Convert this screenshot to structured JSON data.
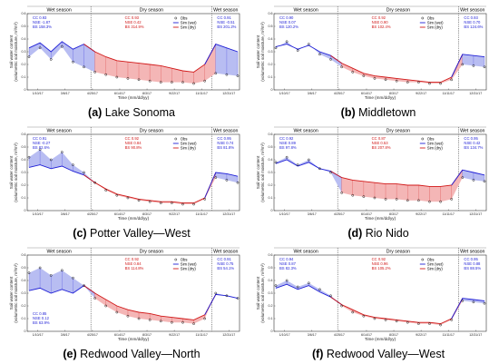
{
  "chart_data": [
    {
      "type": "line",
      "caption_letter": "(a)",
      "caption_name": "Lake Sonoma",
      "ylabel": "Soil water content\n(volumetric soil moisture, m³/m³)",
      "xlabel": "Time (mm/dd/yy)",
      "ylim": [
        0,
        0.6
      ],
      "yticks": [
        "0",
        "0.1",
        "0.2",
        "0.3",
        "0.4",
        "0.5",
        "0.6"
      ],
      "xtick_labels": [
        "1/10/17",
        "3/6/17",
        "4/25/17",
        "6/14/17",
        "8/3/17",
        "9/22/17",
        "11/11/17",
        "12/31/17"
      ],
      "seasons": [
        "Wet season",
        "Dry season",
        "Wet season"
      ],
      "legend": [
        "Obs",
        "Sim (wet)",
        "Sim (dry)"
      ],
      "stats_wet": {
        "CC": "CC   0.93",
        "NSE": "NSE  -1.87",
        "BS": "BS   158.3%"
      },
      "stats_dry": {
        "CC": "CC   0.93",
        "NSE": "NSE  0.42",
        "BS": "BS   314.9%"
      },
      "stats_wet2": {
        "CC": "CC   0.91",
        "NSE": "NSE  -0.51",
        "BS": "BS   201.2%"
      },
      "series": [
        {
          "name": "Obs",
          "values": [
            0.26,
            0.33,
            0.24,
            0.34,
            0.22,
            0.18,
            0.14,
            0.12,
            0.1,
            0.09,
            0.08,
            0.07,
            0.06,
            0.06,
            0.06,
            0.05,
            0.07,
            0.13,
            0.12,
            0.11
          ]
        },
        {
          "name": "Sim",
          "values": [
            0.33,
            0.37,
            0.3,
            0.38,
            0.32,
            0.36,
            0.3,
            0.26,
            0.23,
            0.22,
            0.21,
            0.2,
            0.19,
            0.17,
            0.15,
            0.14,
            0.2,
            0.36,
            0.33,
            0.3
          ]
        }
      ]
    },
    {
      "type": "line",
      "caption_letter": "(b)",
      "caption_name": "Middletown",
      "ylabel": "Soil water content\n(volumetric soil moisture, m³/m³)",
      "xlabel": "Time (mm/dd/yy)",
      "ylim": [
        0,
        0.6
      ],
      "yticks": [
        "0",
        "0.1",
        "0.2",
        "0.3",
        "0.4",
        "0.5",
        "0.6"
      ],
      "xtick_labels": [
        "1/10/17",
        "3/6/17",
        "4/25/17",
        "6/14/17",
        "8/3/17",
        "9/22/17",
        "11/11/17",
        "12/31/17"
      ],
      "seasons": [
        "Wet season",
        "Dry season",
        "Wet season"
      ],
      "legend": [
        "Obs",
        "Sim (wet)",
        "Sim (dry)"
      ],
      "stats_wet": {
        "CC": "CC   0.90",
        "NSE": "NSE  0.07",
        "BS": "BS   120.2%"
      },
      "stats_dry": {
        "CC": "CC   0.92",
        "NSE": "NSE  0.90",
        "BS": "BS   102.4%"
      },
      "stats_wet2": {
        "CC": "CC   0.93",
        "NSE": "NSE  0.70",
        "BS": "BS   124.6%"
      },
      "series": [
        {
          "name": "Obs",
          "values": [
            0.33,
            0.38,
            0.31,
            0.36,
            0.28,
            0.24,
            0.18,
            0.14,
            0.11,
            0.09,
            0.08,
            0.07,
            0.06,
            0.06,
            0.05,
            0.05,
            0.08,
            0.2,
            0.19,
            0.18
          ]
        },
        {
          "name": "Sim",
          "values": [
            0.34,
            0.36,
            0.32,
            0.35,
            0.3,
            0.27,
            0.21,
            0.17,
            0.13,
            0.11,
            0.1,
            0.09,
            0.08,
            0.07,
            0.06,
            0.06,
            0.1,
            0.28,
            0.27,
            0.26
          ]
        }
      ]
    },
    {
      "type": "line",
      "caption_letter": "(c)",
      "caption_name": "Potter Valley—West",
      "ylabel": "Soil water content\n(volumetric soil moisture, m³/m³)",
      "xlabel": "Time (mm/dd/yy)",
      "ylim": [
        0,
        0.6
      ],
      "yticks": [
        "0",
        "0.1",
        "0.2",
        "0.3",
        "0.4",
        "0.5",
        "0.6"
      ],
      "xtick_labels": [
        "1/10/17",
        "3/6/17",
        "4/25/17",
        "6/14/17",
        "8/3/17",
        "9/22/17",
        "11/11/17",
        "12/31/17"
      ],
      "seasons": [
        "Wet season",
        "Dry season",
        "Wet season"
      ],
      "legend": [
        "Obs",
        "Sim (wet)",
        "Sim (dry)"
      ],
      "stats_wet": {
        "CC": "CC   0.91",
        "NSE": "NSE  -0.27",
        "BS": "BS   82.6%"
      },
      "stats_dry": {
        "CC": "CC   0.92",
        "NSE": "NSE  0.84",
        "BS": "BS   90.8%"
      },
      "stats_wet2": {
        "CC": "CC   0.95",
        "NSE": "NSE  0.74",
        "BS": "BS   81.8%"
      },
      "series": [
        {
          "name": "Obs",
          "values": [
            0.42,
            0.48,
            0.4,
            0.46,
            0.36,
            0.3,
            0.22,
            0.16,
            0.12,
            0.1,
            0.08,
            0.07,
            0.06,
            0.06,
            0.05,
            0.05,
            0.09,
            0.26,
            0.24,
            0.22
          ]
        },
        {
          "name": "Sim",
          "values": [
            0.34,
            0.36,
            0.33,
            0.35,
            0.31,
            0.28,
            0.22,
            0.17,
            0.13,
            0.11,
            0.09,
            0.08,
            0.07,
            0.07,
            0.06,
            0.06,
            0.1,
            0.3,
            0.29,
            0.27
          ]
        }
      ]
    },
    {
      "type": "line",
      "caption_letter": "(d)",
      "caption_name": "Rio Nido",
      "ylabel": "Soil water content\n(volumetric soil moisture, m³/m³)",
      "xlabel": "Time (mm/dd/yy)",
      "ylim": [
        0,
        0.6
      ],
      "yticks": [
        "0",
        "0.1",
        "0.2",
        "0.3",
        "0.4",
        "0.5",
        "0.6"
      ],
      "xtick_labels": [
        "1/10/17",
        "3/6/17",
        "4/25/17",
        "6/14/17",
        "8/3/17",
        "9/22/17",
        "11/11/17",
        "12/31/17"
      ],
      "seasons": [
        "Wet season",
        "Dry season",
        "Wet season"
      ],
      "legend": [
        "Obs",
        "Sim (wet)",
        "Sim (dry)"
      ],
      "stats_wet": {
        "CC": "CC   0.92",
        "NSE": "NSE  0.89",
        "BS": "BS   97.8%"
      },
      "stats_dry": {
        "CC": "CC   0.87",
        "NSE": "NSE  0.53",
        "BS": "BS   207.8%"
      },
      "stats_wet2": {
        "CC": "CC   0.95",
        "NSE": "NSE  0.42",
        "BS": "BS   134.7%"
      },
      "series": [
        {
          "name": "Obs",
          "values": [
            0.38,
            0.42,
            0.36,
            0.4,
            0.33,
            0.3,
            0.14,
            0.12,
            0.11,
            0.1,
            0.09,
            0.09,
            0.08,
            0.08,
            0.07,
            0.07,
            0.09,
            0.26,
            0.24,
            0.23
          ]
        },
        {
          "name": "Sim",
          "values": [
            0.37,
            0.4,
            0.35,
            0.38,
            0.33,
            0.31,
            0.26,
            0.24,
            0.23,
            0.22,
            0.21,
            0.21,
            0.2,
            0.2,
            0.19,
            0.19,
            0.2,
            0.32,
            0.3,
            0.28
          ]
        }
      ]
    },
    {
      "type": "line",
      "caption_letter": "(e)",
      "caption_name": "Redwood Valley—North",
      "ylabel": "Soil water content\n(volumetric soil moisture, m³/m³)",
      "xlabel": "Time (mm/dd/yy)",
      "ylim": [
        0,
        0.6
      ],
      "yticks": [
        "0",
        "0.1",
        "0.2",
        "0.3",
        "0.4",
        "0.5",
        "0.6"
      ],
      "xtick_labels": [
        "1/10/17",
        "3/6/17",
        "4/25/17",
        "6/14/17",
        "8/3/17",
        "9/22/17",
        "11/11/17",
        "12/31/17"
      ],
      "seasons": [
        "Wet season",
        "Dry season",
        "Wet season"
      ],
      "legend": [
        "Obs",
        "Sim (wet)",
        "Sim (dry)"
      ],
      "stats_wet": {
        "CC": "CC   0.85",
        "NSE": "NSE  0.12",
        "BS": "BS   63.9%"
      },
      "stats_dry": {
        "CC": "CC   0.92",
        "NSE": "NSE  0.84",
        "BS": "BS   114.8%"
      },
      "stats_wet2": {
        "CC": "CC   0.91",
        "NSE": "NSE  0.75",
        "BS": "BS   54.1%"
      },
      "series": [
        {
          "name": "Obs",
          "values": [
            0.46,
            0.5,
            0.44,
            0.48,
            0.42,
            0.36,
            0.26,
            0.2,
            0.15,
            0.12,
            0.1,
            0.09,
            0.08,
            0.07,
            0.07,
            0.06,
            0.1,
            0.3,
            0.28,
            0.26
          ]
        },
        {
          "name": "Sim",
          "values": [
            0.32,
            0.34,
            0.3,
            0.33,
            0.3,
            0.36,
            0.3,
            0.25,
            0.2,
            0.17,
            0.15,
            0.14,
            0.12,
            0.11,
            0.1,
            0.09,
            0.13,
            0.29,
            0.28,
            0.26
          ]
        }
      ]
    },
    {
      "type": "line",
      "caption_letter": "(f)",
      "caption_name": "Redwood Valley—West",
      "ylabel": "Soil water content\n(volumetric soil moisture, m³/m³)",
      "xlabel": "Time (mm/dd/yy)",
      "ylim": [
        0,
        0.6
      ],
      "yticks": [
        "0",
        "0.1",
        "0.2",
        "0.3",
        "0.4",
        "0.5",
        "0.6"
      ],
      "xtick_labels": [
        "1/10/17",
        "3/6/17",
        "4/25/17",
        "6/14/17",
        "8/3/17",
        "9/22/17",
        "11/11/17",
        "12/31/17"
      ],
      "seasons": [
        "Wet season",
        "Dry season",
        "Wet season"
      ],
      "legend": [
        "Obs",
        "Sim (wet)",
        "Sim (dry)"
      ],
      "stats_wet": {
        "CC": "CC   0.94",
        "NSE": "NSE  0.87",
        "BS": "BS   82.3%"
      },
      "stats_dry": {
        "CC": "CC   0.92",
        "NSE": "NSE  0.96",
        "BS": "BS   105.2%"
      },
      "stats_wet2": {
        "CC": "CC   0.95",
        "NSE": "NSE  0.88",
        "BS": "BS   88.5%"
      },
      "series": [
        {
          "name": "Obs",
          "values": [
            0.36,
            0.4,
            0.35,
            0.38,
            0.33,
            0.28,
            0.2,
            0.15,
            0.12,
            0.1,
            0.09,
            0.08,
            0.07,
            0.06,
            0.06,
            0.05,
            0.09,
            0.24,
            0.23,
            0.22
          ]
        },
        {
          "name": "Sim",
          "values": [
            0.34,
            0.37,
            0.33,
            0.36,
            0.31,
            0.27,
            0.21,
            0.17,
            0.13,
            0.11,
            0.1,
            0.09,
            0.08,
            0.07,
            0.07,
            0.06,
            0.1,
            0.26,
            0.25,
            0.24
          ]
        }
      ]
    }
  ],
  "colors": {
    "obs": "#000000",
    "wet": "#1f1fd6",
    "dry": "#d11919",
    "wet_fill": "#b8bdf2",
    "dry_fill": "#f4b6b6",
    "dryline": "#444444"
  }
}
